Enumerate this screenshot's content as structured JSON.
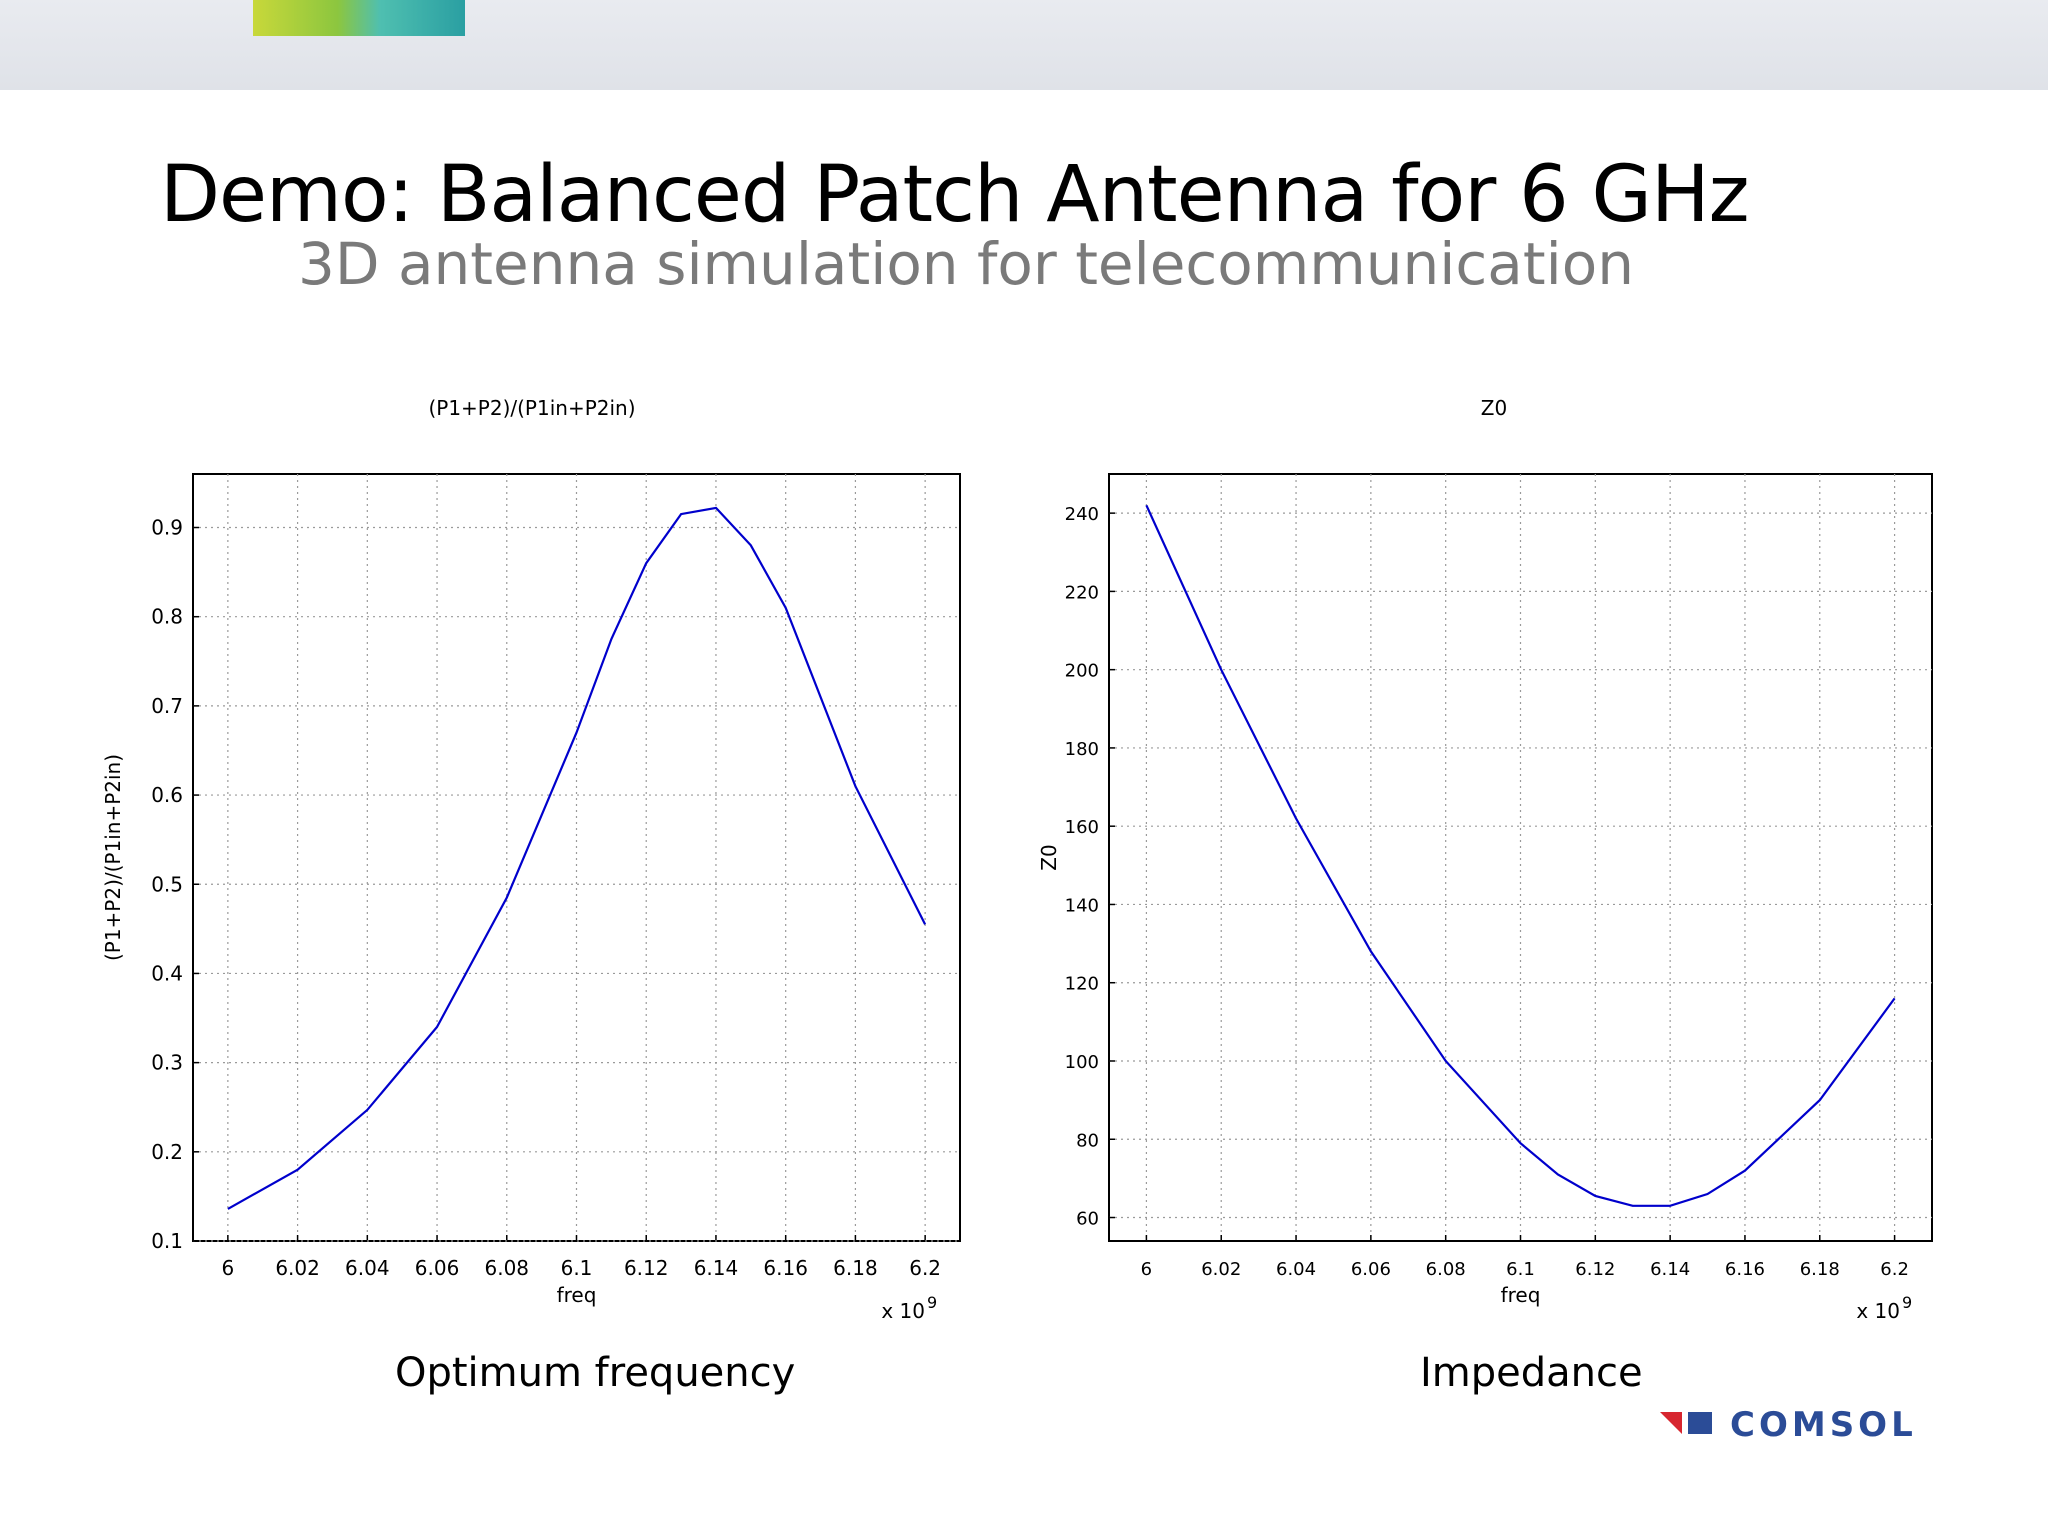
{
  "slide": {
    "title": "Demo: Balanced Patch Antenna for 6 GHz",
    "subtitle": "3D antenna simulation for telecommunication",
    "caption_left": "Optimum frequency",
    "caption_right": "Impedance",
    "logo_text": "COMSOL",
    "colors": {
      "line": "#0000cc",
      "grid": "#9a9a9a",
      "frame": "#000000",
      "subtitle": "#7a7a7a",
      "logo": "#2b4c97"
    }
  },
  "chart_data": [
    {
      "type": "line",
      "title": "(P1+P2)/(P1in+P2in)",
      "xlabel": "freq",
      "ylabel": "(P1+P2)/(P1in+P2in)",
      "x_multiplier": "x 10",
      "x_multiplier_exp": "9",
      "x_ticks": [
        "6",
        "6.02",
        "6.04",
        "6.06",
        "6.08",
        "6.1",
        "6.12",
        "6.14",
        "6.16",
        "6.18",
        "6.2"
      ],
      "y_ticks": [
        "0.1",
        "0.2",
        "0.3",
        "0.4",
        "0.5",
        "0.6",
        "0.7",
        "0.8",
        "0.9"
      ],
      "xlim": [
        5.99,
        6.21
      ],
      "ylim": [
        0.1,
        0.96
      ],
      "grid": true,
      "series": [
        {
          "name": "(P1+P2)/(P1in+P2in)",
          "x": [
            6.0,
            6.02,
            6.04,
            6.06,
            6.08,
            6.1,
            6.11,
            6.12,
            6.13,
            6.14,
            6.15,
            6.16,
            6.18,
            6.2
          ],
          "y": [
            0.136,
            0.18,
            0.247,
            0.34,
            0.485,
            0.67,
            0.775,
            0.86,
            0.915,
            0.922,
            0.88,
            0.81,
            0.61,
            0.455
          ]
        }
      ]
    },
    {
      "type": "line",
      "title": "Z0",
      "xlabel": "freq",
      "ylabel": "Z0",
      "x_multiplier": "x 10",
      "x_multiplier_exp": "9",
      "x_ticks": [
        "6",
        "6.02",
        "6.04",
        "6.06",
        "6.08",
        "6.1",
        "6.12",
        "6.14",
        "6.16",
        "6.18",
        "6.2"
      ],
      "y_ticks": [
        "60",
        "80",
        "100",
        "120",
        "140",
        "160",
        "180",
        "200",
        "220",
        "240"
      ],
      "xlim": [
        5.99,
        6.21
      ],
      "ylim": [
        54,
        250
      ],
      "grid": true,
      "series": [
        {
          "name": "Z0",
          "x": [
            6.0,
            6.02,
            6.04,
            6.06,
            6.08,
            6.1,
            6.11,
            6.12,
            6.13,
            6.14,
            6.15,
            6.16,
            6.18,
            6.2
          ],
          "y": [
            242,
            200,
            162,
            128,
            100,
            79,
            71,
            65.5,
            63,
            63,
            66,
            72,
            90,
            116
          ]
        }
      ]
    }
  ]
}
